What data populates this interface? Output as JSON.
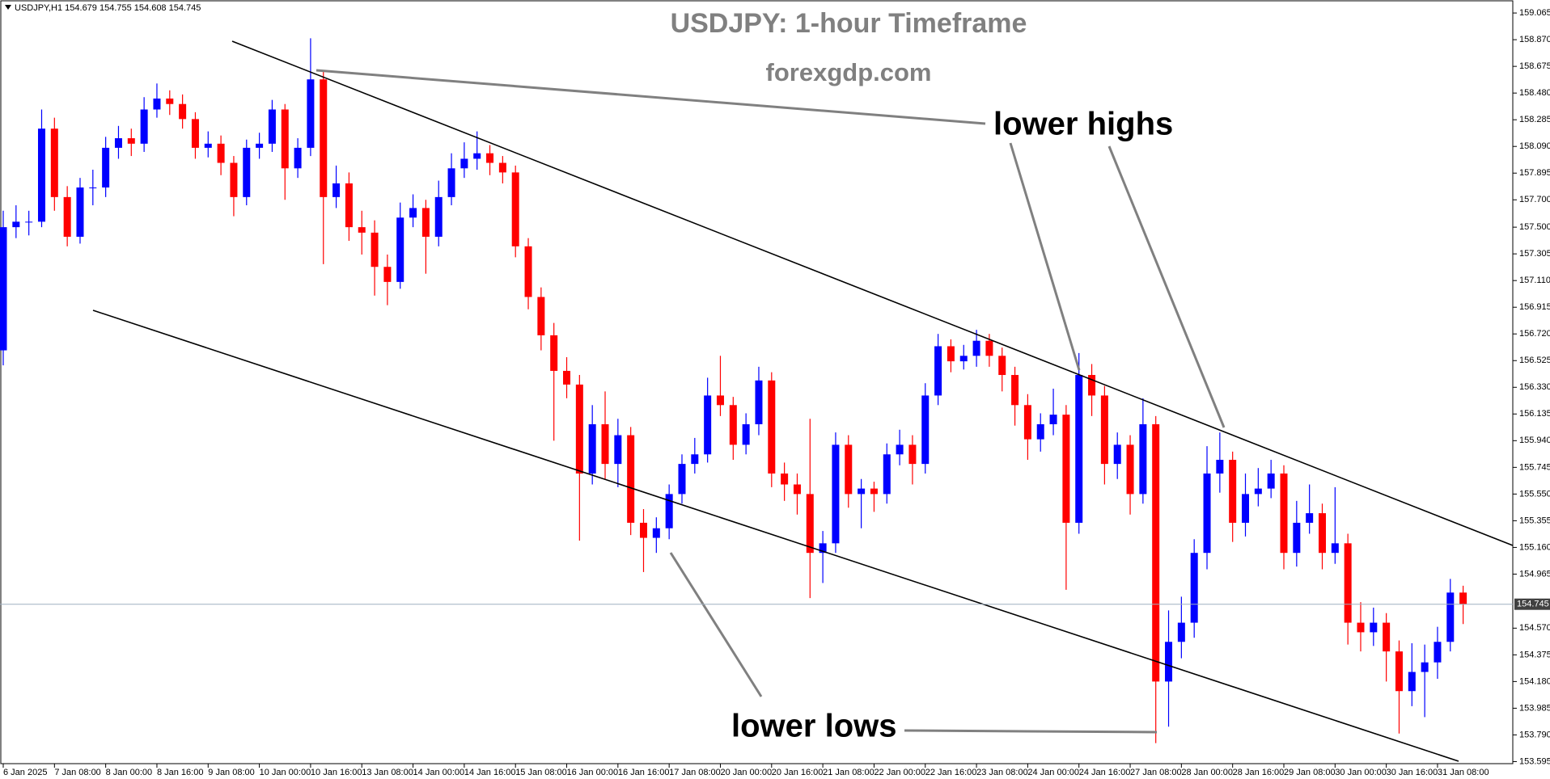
{
  "chart_data": {
    "type": "candlestick",
    "info": "USDJPY,H1  154.679 154.755 154.608 154.745",
    "title": "USDJPY: 1-hour Timeframe",
    "subtitle": "forexgdp.com",
    "annotations": [
      "lower highs",
      "lower lows"
    ],
    "up_color": "#0000ff",
    "down_color": "#ff0000",
    "current_price": 154.745,
    "ylim": [
      153.58,
      159.16
    ],
    "yticks": [
      159.065,
      {
        "value": 158.87,
        "label": "158.870"
      },
      158.675,
      {
        "value": 158.48,
        "label": "158.480"
      },
      158.285,
      {
        "value": 158.09,
        "label": "158.090"
      },
      157.895,
      {
        "value": 157.7,
        "label": "157.700"
      },
      {
        "value": 157.5,
        "label": "157.500"
      },
      157.305,
      {
        "value": 157.11,
        "label": "157.110"
      },
      156.915,
      {
        "value": 156.72,
        "label": "156.720"
      },
      156.525,
      {
        "value": 156.33,
        "label": "156.330"
      },
      156.135,
      {
        "value": 155.94,
        "label": "155.940"
      },
      155.745,
      {
        "value": 155.55,
        "label": "155.550"
      },
      155.355,
      {
        "value": 155.16,
        "label": "155.160"
      },
      154.965,
      {
        "value": 154.57,
        "label": "154.570"
      },
      154.375,
      {
        "value": 154.18,
        "label": "154.180"
      },
      153.985,
      {
        "value": 153.79,
        "label": "153.790"
      },
      153.595
    ],
    "categories": [
      "6 Jan 2025",
      null,
      null,
      null,
      "7 Jan 08:00",
      null,
      null,
      null,
      "8 Jan 00:00",
      null,
      null,
      null,
      "8 Jan 16:00",
      null,
      null,
      null,
      "9 Jan 08:00",
      null,
      null,
      null,
      "10 Jan 00:00",
      null,
      null,
      null,
      "10 Jan 16:00",
      null,
      null,
      null,
      "13 Jan 08:00",
      null,
      null,
      null,
      "14 Jan 00:00",
      null,
      null,
      null,
      "14 Jan 16:00",
      null,
      null,
      null,
      "15 Jan 08:00",
      null,
      null,
      null,
      "16 Jan 00:00",
      null,
      null,
      null,
      "16 Jan 16:00",
      null,
      null,
      null,
      "17 Jan 08:00",
      null,
      null,
      null,
      "20 Jan 00:00",
      null,
      null,
      null,
      "20 Jan 16:00",
      null,
      null,
      null,
      "21 Jan 08:00",
      null,
      null,
      null,
      "22 Jan 00:00",
      null,
      null,
      null,
      "22 Jan 16:00",
      null,
      null,
      null,
      "23 Jan 08:00",
      null,
      null,
      null,
      "24 Jan 00:00",
      null,
      null,
      null,
      "24 Jan 16:00",
      null,
      null,
      null,
      "27 Jan 08:00",
      null,
      null,
      null,
      "28 Jan 00:00",
      null,
      null,
      null,
      "28 Jan 16:00",
      null,
      null,
      null,
      "29 Jan 08:00",
      null,
      null,
      null,
      "30 Jan 00:00",
      null,
      null,
      null,
      "30 Jan 16:00",
      null,
      null,
      null,
      "31 Jan 08:00",
      null,
      null
    ],
    "ohlc": [
      [
        156.6,
        157.62,
        156.49,
        157.5
      ],
      [
        157.5,
        157.66,
        157.42,
        157.54
      ],
      [
        157.54,
        157.62,
        157.44,
        157.54
      ],
      [
        157.54,
        158.36,
        157.5,
        158.22
      ],
      [
        158.22,
        158.3,
        157.62,
        157.72
      ],
      [
        157.72,
        157.8,
        157.36,
        157.43
      ],
      [
        157.43,
        157.86,
        157.38,
        157.79
      ],
      [
        157.79,
        157.92,
        157.66,
        157.79
      ],
      [
        157.79,
        158.16,
        157.72,
        158.08
      ],
      [
        158.08,
        158.24,
        158.0,
        158.15
      ],
      [
        158.15,
        158.22,
        158.02,
        158.11
      ],
      [
        158.11,
        158.45,
        158.05,
        158.36
      ],
      [
        158.36,
        158.55,
        158.3,
        158.44
      ],
      [
        158.44,
        158.5,
        158.32,
        158.4
      ],
      [
        158.4,
        158.47,
        158.22,
        158.29
      ],
      [
        158.29,
        158.34,
        158.0,
        158.08
      ],
      [
        158.08,
        158.2,
        158.01,
        158.11
      ],
      [
        158.11,
        158.17,
        157.88,
        157.97
      ],
      [
        157.97,
        158.02,
        157.58,
        157.72
      ],
      [
        157.72,
        158.14,
        157.66,
        158.08
      ],
      [
        158.08,
        158.19,
        158.0,
        158.11
      ],
      [
        158.11,
        158.43,
        158.05,
        158.36
      ],
      [
        158.36,
        158.4,
        157.7,
        157.93
      ],
      [
        157.93,
        158.15,
        157.86,
        158.08
      ],
      [
        158.08,
        158.88,
        158.02,
        158.58
      ],
      [
        158.58,
        158.64,
        157.23,
        157.72
      ],
      [
        157.72,
        157.95,
        157.64,
        157.82
      ],
      [
        157.82,
        157.9,
        157.4,
        157.5
      ],
      [
        157.5,
        157.62,
        157.3,
        157.46
      ],
      [
        157.46,
        157.55,
        157.0,
        157.21
      ],
      [
        157.21,
        157.3,
        156.93,
        157.1
      ],
      [
        157.1,
        157.68,
        157.05,
        157.57
      ],
      [
        157.57,
        157.74,
        157.5,
        157.64
      ],
      [
        157.64,
        157.7,
        157.16,
        157.43
      ],
      [
        157.43,
        157.84,
        157.36,
        157.72
      ],
      [
        157.72,
        158.04,
        157.66,
        157.93
      ],
      [
        157.93,
        158.12,
        157.86,
        158.0
      ],
      [
        158.0,
        158.2,
        157.92,
        158.04
      ],
      [
        158.04,
        158.1,
        157.88,
        157.97
      ],
      [
        157.97,
        158.02,
        157.82,
        157.9
      ],
      [
        157.9,
        157.95,
        157.28,
        157.36
      ],
      [
        157.36,
        157.42,
        156.9,
        156.99
      ],
      [
        156.99,
        157.06,
        156.6,
        156.71
      ],
      [
        156.71,
        156.8,
        155.94,
        156.45
      ],
      [
        156.45,
        156.55,
        156.25,
        156.35
      ],
      [
        156.35,
        156.42,
        155.21,
        155.7
      ],
      [
        155.7,
        156.2,
        155.62,
        156.06
      ],
      [
        156.06,
        156.3,
        155.66,
        155.77
      ],
      [
        155.77,
        156.1,
        155.6,
        155.98
      ],
      [
        155.98,
        156.04,
        155.25,
        155.34
      ],
      [
        155.34,
        155.44,
        154.98,
        155.23
      ],
      [
        155.23,
        155.38,
        155.12,
        155.3
      ],
      [
        155.3,
        155.62,
        155.22,
        155.55
      ],
      [
        155.55,
        155.84,
        155.48,
        155.77
      ],
      [
        155.77,
        155.96,
        155.7,
        155.84
      ],
      [
        155.84,
        156.4,
        155.78,
        156.27
      ],
      [
        156.27,
        156.56,
        156.12,
        156.2
      ],
      [
        156.2,
        156.26,
        155.8,
        155.91
      ],
      [
        155.91,
        156.14,
        155.84,
        156.06
      ],
      [
        156.06,
        156.48,
        155.98,
        156.38
      ],
      [
        156.38,
        156.44,
        155.6,
        155.7
      ],
      [
        155.7,
        155.78,
        155.5,
        155.62
      ],
      [
        155.62,
        155.7,
        155.4,
        155.55
      ],
      [
        155.55,
        156.1,
        154.79,
        155.12
      ],
      [
        155.12,
        155.28,
        154.9,
        155.19
      ],
      [
        155.19,
        156.0,
        155.12,
        155.91
      ],
      [
        155.91,
        155.98,
        155.45,
        155.55
      ],
      [
        155.55,
        155.66,
        155.3,
        155.59
      ],
      [
        155.59,
        155.64,
        155.42,
        155.55
      ],
      [
        155.55,
        155.92,
        155.48,
        155.84
      ],
      [
        155.84,
        156.02,
        155.76,
        155.91
      ],
      [
        155.91,
        155.98,
        155.62,
        155.77
      ],
      [
        155.77,
        156.36,
        155.7,
        156.27
      ],
      [
        156.27,
        156.72,
        156.2,
        156.63
      ],
      [
        156.63,
        156.68,
        156.44,
        156.52
      ],
      [
        156.52,
        156.64,
        156.46,
        156.56
      ],
      [
        156.56,
        156.75,
        156.48,
        156.67
      ],
      [
        156.67,
        156.72,
        156.48,
        156.56
      ],
      [
        156.56,
        156.62,
        156.3,
        156.42
      ],
      [
        156.42,
        156.48,
        156.05,
        156.2
      ],
      [
        156.2,
        156.28,
        155.8,
        155.95
      ],
      [
        155.95,
        156.14,
        155.86,
        156.06
      ],
      [
        156.06,
        156.32,
        155.98,
        156.13
      ],
      [
        156.13,
        156.2,
        154.85,
        155.34
      ],
      [
        155.34,
        156.58,
        155.26,
        156.42
      ],
      [
        156.42,
        156.5,
        156.12,
        156.27
      ],
      [
        156.27,
        156.34,
        155.62,
        155.77
      ],
      [
        155.77,
        156.0,
        155.66,
        155.91
      ],
      [
        155.91,
        155.98,
        155.4,
        155.55
      ],
      [
        155.55,
        156.25,
        155.48,
        156.06
      ],
      [
        156.06,
        156.12,
        153.73,
        154.18
      ],
      [
        154.18,
        154.7,
        153.85,
        154.47
      ],
      [
        154.47,
        154.8,
        154.35,
        154.61
      ],
      [
        154.61,
        155.22,
        154.5,
        155.12
      ],
      [
        155.12,
        155.9,
        155.0,
        155.7
      ],
      [
        155.7,
        156.0,
        155.56,
        155.8
      ],
      [
        155.8,
        155.86,
        155.2,
        155.34
      ],
      [
        155.34,
        155.7,
        155.24,
        155.55
      ],
      [
        155.55,
        155.74,
        155.46,
        155.59
      ],
      [
        155.59,
        155.8,
        155.52,
        155.7
      ],
      [
        155.7,
        155.76,
        155.0,
        155.12
      ],
      [
        155.12,
        155.5,
        155.02,
        155.34
      ],
      [
        155.34,
        155.62,
        155.26,
        155.41
      ],
      [
        155.41,
        155.48,
        155.0,
        155.12
      ],
      [
        155.12,
        155.6,
        155.04,
        155.19
      ],
      [
        155.19,
        155.26,
        154.45,
        154.61
      ],
      [
        154.61,
        154.76,
        154.4,
        154.54
      ],
      [
        154.54,
        154.72,
        154.44,
        154.61
      ],
      [
        154.61,
        154.68,
        154.18,
        154.4
      ],
      [
        154.4,
        154.48,
        153.8,
        154.11
      ],
      [
        154.11,
        154.46,
        154.0,
        154.25
      ],
      [
        154.25,
        154.45,
        153.92,
        154.32
      ],
      [
        154.32,
        154.58,
        154.2,
        154.47
      ],
      [
        154.47,
        154.93,
        154.4,
        154.83
      ],
      [
        154.83,
        154.88,
        154.6,
        154.745
      ]
    ]
  }
}
